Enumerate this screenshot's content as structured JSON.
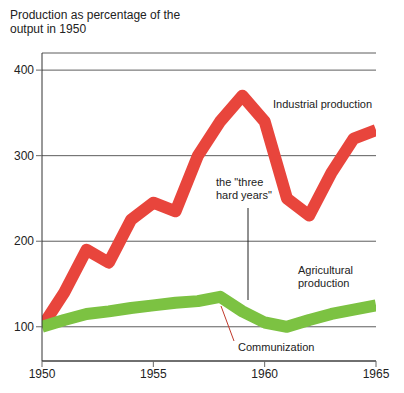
{
  "chart_data": {
    "type": "line",
    "y_label": "Production as percentage of the output in 1950",
    "x": [
      1950,
      1951,
      1952,
      1953,
      1954,
      1955,
      1956,
      1957,
      1958,
      1959,
      1960,
      1961,
      1962,
      1963,
      1964,
      1965
    ],
    "series": [
      {
        "name": "Industrial production",
        "color": "#e8453c",
        "values": [
          100,
          140,
          190,
          175,
          225,
          245,
          235,
          300,
          340,
          370,
          340,
          250,
          230,
          280,
          320,
          330
        ]
      },
      {
        "name": "Agricultural production",
        "color": "#7cc242",
        "values": [
          100,
          108,
          115,
          118,
          122,
          125,
          128,
          130,
          135,
          118,
          105,
          100,
          108,
          115,
          120,
          125
        ]
      }
    ],
    "annotations": [
      "the \"three hard years\"",
      "Communization"
    ],
    "xlim": [
      1950,
      1965
    ],
    "xticks": [
      1950,
      1955,
      1960,
      1965
    ],
    "ylim": [
      60,
      420
    ],
    "yticks": [
      100,
      200,
      300,
      400
    ],
    "grid": true
  }
}
